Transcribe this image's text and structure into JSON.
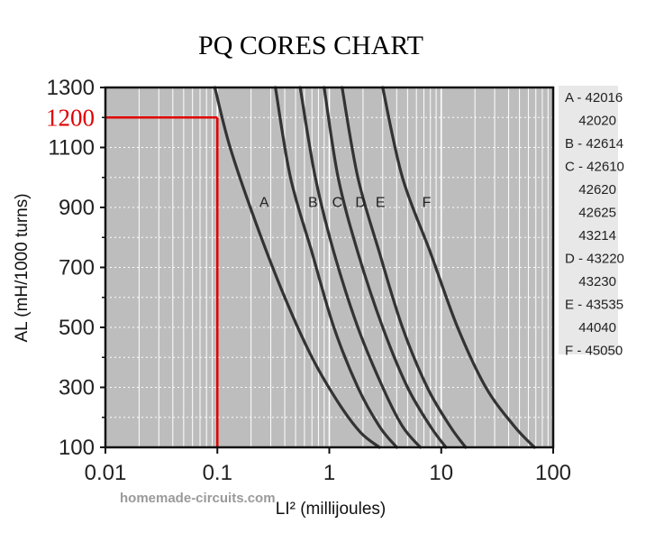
{
  "chart_data": {
    "type": "line",
    "title": "PQ CORES CHART",
    "xlabel": "LI² (millijoules)",
    "ylabel": "AL (mH/1000 turns)",
    "x_scale": "log",
    "xlim": [
      0.01,
      100
    ],
    "ylim": [
      100,
      1300
    ],
    "x_ticks": [
      "0.01",
      "0.1",
      "1",
      "10",
      "100"
    ],
    "y_ticks": [
      "100",
      "300",
      "500",
      "700",
      "900",
      "1100",
      "1300"
    ],
    "grid": true,
    "series": [
      {
        "name": "A",
        "x": [
          0.095,
          0.13,
          0.22,
          0.4,
          0.7,
          1.2,
          1.9,
          2.8
        ],
        "y": [
          1300,
          1100,
          850,
          600,
          400,
          250,
          150,
          100
        ]
      },
      {
        "name": "B",
        "x": [
          0.33,
          0.45,
          0.7,
          1.1,
          1.8,
          2.8,
          4.0
        ],
        "y": [
          1300,
          1000,
          750,
          500,
          300,
          170,
          100
        ]
      },
      {
        "name": "C",
        "x": [
          0.55,
          0.75,
          1.1,
          1.8,
          3.0,
          4.5,
          6.5
        ],
        "y": [
          1300,
          1000,
          750,
          500,
          300,
          170,
          100
        ]
      },
      {
        "name": "D",
        "x": [
          0.9,
          1.2,
          1.8,
          3.0,
          5.0,
          8.0,
          11.0
        ],
        "y": [
          1300,
          1000,
          750,
          500,
          300,
          170,
          100
        ]
      },
      {
        "name": "E",
        "x": [
          1.3,
          1.8,
          2.8,
          4.5,
          7.5,
          12.0,
          16.5
        ],
        "y": [
          1300,
          1000,
          750,
          500,
          300,
          170,
          100
        ]
      },
      {
        "name": "F",
        "x": [
          3.0,
          4.5,
          8.0,
          14.0,
          25.0,
          45.0,
          68.0
        ],
        "y": [
          1300,
          1000,
          750,
          500,
          300,
          170,
          100
        ]
      }
    ],
    "callout": {
      "label": "1200",
      "x": 0.1,
      "y": 1200,
      "color": "#e00000"
    },
    "legend": {
      "placement": "right",
      "entries": [
        "A - 42016",
        "42020",
        "B - 42614",
        "C - 42610",
        "42620",
        "42625",
        "43214",
        "D - 43220",
        "43230",
        "E - 43535",
        "44040",
        "F - 45050"
      ]
    }
  },
  "watermark": "homemade-circuits.com",
  "colors": {
    "plot_bg": "#bdbdbd",
    "grid": "#ffffff",
    "curve": "#333333",
    "callout": "#e00000"
  }
}
